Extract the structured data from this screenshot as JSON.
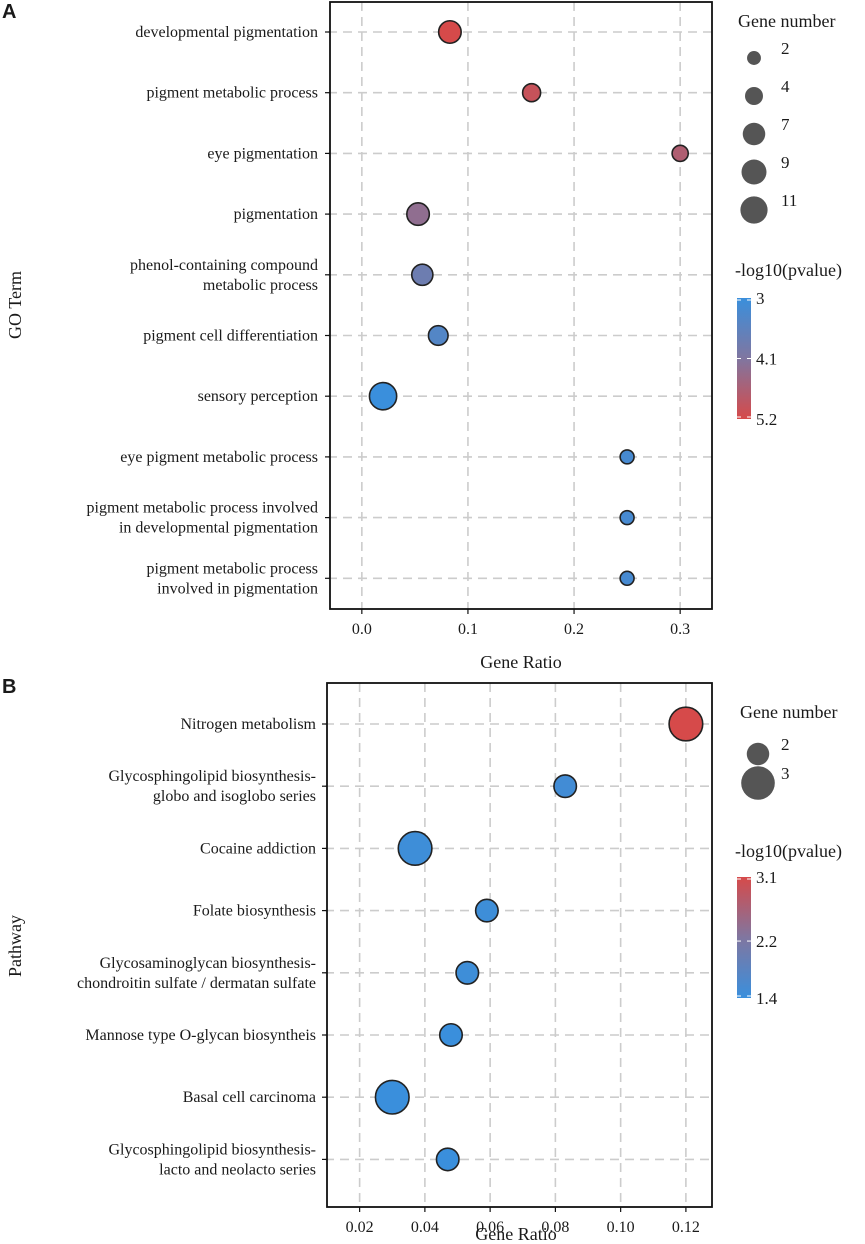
{
  "chart_data": [
    {
      "panel": "A",
      "type": "scatter",
      "xlabel": "Gene Ratio",
      "ylabel": "GO Term",
      "xlim": [
        -0.03,
        0.33
      ],
      "xticks": [
        0.0,
        0.1,
        0.2,
        0.3
      ],
      "xtick_labels": [
        "0.0",
        "0.1",
        "0.2",
        "0.3"
      ],
      "grid": true,
      "categories": [
        [
          "developmental pigmentation"
        ],
        [
          "pigment metabolic process"
        ],
        [
          "eye pigmentation"
        ],
        [
          "pigmentation"
        ],
        [
          "phenol-containing compound",
          "metabolic process"
        ],
        [
          "pigment cell differentiation"
        ],
        [
          "sensory perception"
        ],
        [
          "eye pigment metabolic process"
        ],
        [
          "pigment metabolic process involved",
          "in developmental pigmentation"
        ],
        [
          "pigment metabolic process",
          "involved in pigmentation"
        ]
      ],
      "points": [
        {
          "x": 0.083,
          "gene_number": 7,
          "pvalue": 5.2
        },
        {
          "x": 0.16,
          "gene_number": 4,
          "pvalue": 5.0
        },
        {
          "x": 0.3,
          "gene_number": 3,
          "pvalue": 4.7
        },
        {
          "x": 0.053,
          "gene_number": 7,
          "pvalue": 4.3
        },
        {
          "x": 0.057,
          "gene_number": 6,
          "pvalue": 3.8
        },
        {
          "x": 0.072,
          "gene_number": 5,
          "pvalue": 3.4
        },
        {
          "x": 0.02,
          "gene_number": 11,
          "pvalue": 3.0
        },
        {
          "x": 0.25,
          "gene_number": 2,
          "pvalue": 3.2
        },
        {
          "x": 0.25,
          "gene_number": 2,
          "pvalue": 3.2
        },
        {
          "x": 0.25,
          "gene_number": 2,
          "pvalue": 3.2
        }
      ],
      "legend_size": {
        "title": "Gene number",
        "values": [
          2,
          4,
          7,
          9,
          11
        ],
        "labels": [
          "2",
          "4",
          "7",
          "9",
          "11"
        ]
      },
      "legend_color": {
        "title": "-log10(pvalue)",
        "range": [
          3,
          5.2
        ],
        "ticks": [
          3,
          4.1,
          5.2
        ],
        "labels": [
          "3",
          "4.1",
          "5.2"
        ],
        "low_color": "#3a8fdc",
        "high_color": "#d64a4a"
      }
    },
    {
      "panel": "B",
      "type": "scatter",
      "xlabel": "Gene Ratio",
      "ylabel": "Pathway",
      "xlim": [
        0.01,
        0.128
      ],
      "xticks": [
        0.02,
        0.04,
        0.06,
        0.08,
        0.1,
        0.12
      ],
      "xtick_labels": [
        "0.02",
        "0.04",
        "0.06",
        "0.08",
        "0.10",
        "0.12"
      ],
      "grid": true,
      "categories": [
        [
          "Nitrogen metabolism"
        ],
        [
          "Glycosphingolipid biosynthesis-",
          "globo and isoglobo series"
        ],
        [
          "Cocaine addiction"
        ],
        [
          "Folate biosynthesis"
        ],
        [
          "Glycosaminoglycan biosynthesis-",
          "chondroitin sulfate / dermatan sulfate"
        ],
        [
          "Mannose type O-glycan biosyntheis"
        ],
        [
          "Basal cell carcinoma"
        ],
        [
          "Glycosphingolipid biosynthesis-",
          "lacto and neolacto series"
        ]
      ],
      "points": [
        {
          "x": 0.12,
          "gene_number": 3,
          "pvalue": 3.1
        },
        {
          "x": 0.083,
          "gene_number": 2,
          "pvalue": 1.5
        },
        {
          "x": 0.037,
          "gene_number": 3,
          "pvalue": 1.45
        },
        {
          "x": 0.059,
          "gene_number": 2,
          "pvalue": 1.45
        },
        {
          "x": 0.053,
          "gene_number": 2,
          "pvalue": 1.45
        },
        {
          "x": 0.048,
          "gene_number": 2,
          "pvalue": 1.4
        },
        {
          "x": 0.03,
          "gene_number": 3,
          "pvalue": 1.4
        },
        {
          "x": 0.047,
          "gene_number": 2,
          "pvalue": 1.4
        }
      ],
      "legend_size": {
        "title": "Gene number",
        "values": [
          2,
          3
        ],
        "labels": [
          "2",
          "3"
        ]
      },
      "legend_color": {
        "title": "-log10(pvalue)",
        "range": [
          1.4,
          3.1
        ],
        "ticks": [
          1.4,
          2.2,
          3.1
        ],
        "labels": [
          "1.4",
          "2.2",
          "3.1"
        ],
        "low_color": "#3a8fdc",
        "high_color": "#d64a4a"
      }
    }
  ]
}
